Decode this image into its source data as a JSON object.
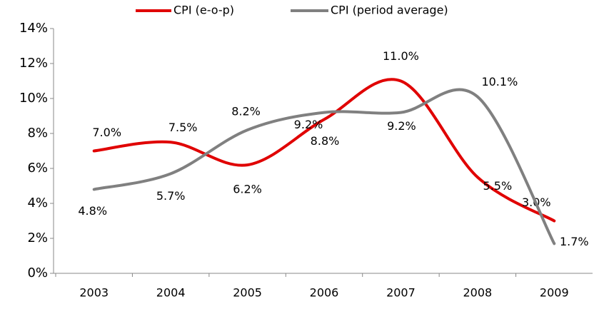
{
  "chart_data": {
    "type": "line",
    "categories": [
      "2003",
      "2004",
      "2005",
      "2006",
      "2007",
      "2008",
      "2009"
    ],
    "series": [
      {
        "name": "CPI (e-o-p)",
        "color": "#e00000",
        "values": [
          7.0,
          7.5,
          6.2,
          8.8,
          11.0,
          5.5,
          3.0
        ],
        "value_labels": [
          "7.0%",
          "7.5%",
          "6.2%",
          "8.8%",
          "11.0%",
          "5.5%",
          "3.0%"
        ]
      },
      {
        "name": "CPI (period average)",
        "color": "#808080",
        "values": [
          4.8,
          5.7,
          8.2,
          9.2,
          9.2,
          10.1,
          1.7
        ],
        "value_labels": [
          "4.8%",
          "5.7%",
          "8.2%",
          "9.2%",
          "9.2%",
          "10.1%",
          "1.7%"
        ]
      }
    ],
    "ylim": [
      0,
      14
    ],
    "yticks": [
      {
        "value": 0,
        "label": "0%"
      },
      {
        "value": 2,
        "label": "2%"
      },
      {
        "value": 4,
        "label": "4%"
      },
      {
        "value": 6,
        "label": "6%"
      },
      {
        "value": 8,
        "label": "8%"
      },
      {
        "value": 10,
        "label": "10%"
      },
      {
        "value": 12,
        "label": "12%"
      },
      {
        "value": 14,
        "label": "14%"
      }
    ],
    "legend": "top",
    "grid": false
  }
}
